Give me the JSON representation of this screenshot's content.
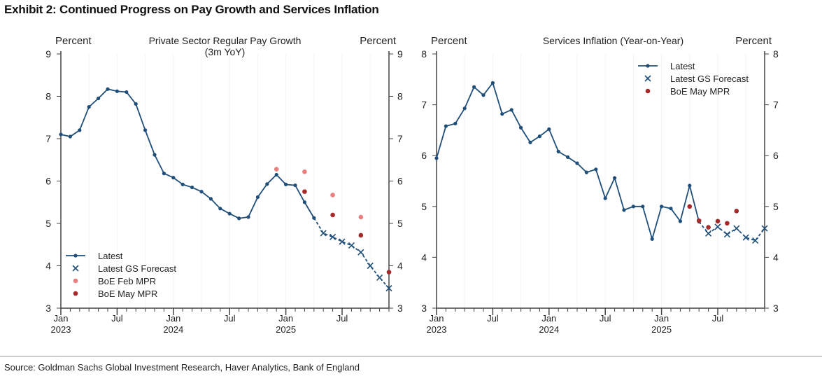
{
  "title": "Exhibit 2: Continued Progress on Pay Growth and Services Inflation",
  "source": "Source: Goldman Sachs Global Investment Research, Haver Analytics, Bank of England",
  "colors": {
    "latest": "#1f4e79",
    "feb_mpr": "#e88080",
    "may_mpr": "#a52a2a"
  },
  "chart_data": [
    {
      "type": "line",
      "title": "Private Sector Regular Pay Growth",
      "subtitle": "(3m YoY)",
      "ylabel_left": "Percent",
      "ylabel_right": "Percent",
      "ylim": [
        3,
        9
      ],
      "yticks": [
        "3",
        "4",
        "5",
        "6",
        "7",
        "8",
        "9"
      ],
      "xticks": [
        {
          "m": 0,
          "label": "Jan",
          "label2": "2023"
        },
        {
          "m": 6,
          "label": "Jul",
          "label2": ""
        },
        {
          "m": 12,
          "label": "Jan",
          "label2": "2024"
        },
        {
          "m": 18,
          "label": "Jul",
          "label2": ""
        },
        {
          "m": 24,
          "label": "Jan",
          "label2": "2025"
        },
        {
          "m": 30,
          "label": "Jul",
          "label2": ""
        }
      ],
      "x_months": 36,
      "legend": [
        "Latest",
        "Latest GS Forecast",
        "BoE Feb MPR",
        "BoE May MPR"
      ],
      "legend_position": "bottom-left",
      "series": {
        "latest": {
          "start": 0,
          "values": [
            7.1,
            7.05,
            7.2,
            7.75,
            7.95,
            8.17,
            8.12,
            8.1,
            7.82,
            7.2,
            6.62,
            6.18,
            6.08,
            5.92,
            5.85,
            5.75,
            5.58,
            5.35,
            5.23,
            5.12,
            5.15,
            5.62,
            5.93,
            6.15,
            5.92,
            5.9,
            5.5,
            5.13
          ]
        },
        "forecast": {
          "start": 28,
          "values": [
            4.77,
            4.68,
            4.57,
            4.48,
            4.32,
            4.0,
            3.72,
            3.47
          ]
        },
        "feb_mpr": [
          {
            "m": 23,
            "v": 6.28
          },
          {
            "m": 26,
            "v": 6.22
          },
          {
            "m": 29,
            "v": 5.67
          },
          {
            "m": 32,
            "v": 5.15
          }
        ],
        "may_mpr": [
          {
            "m": 26,
            "v": 5.75
          },
          {
            "m": 29,
            "v": 5.2
          },
          {
            "m": 32,
            "v": 4.72
          },
          {
            "m": 35,
            "v": 3.85
          }
        ]
      }
    },
    {
      "type": "line",
      "title": "Services Inflation (Year-on-Year)",
      "subtitle": "",
      "ylabel_left": "Percent",
      "ylabel_right": "Percent",
      "ylim": [
        3,
        8
      ],
      "yticks": [
        "3",
        "4",
        "5",
        "6",
        "7",
        "8"
      ],
      "xticks": [
        {
          "m": 0,
          "label": "Jan",
          "label2": "2023"
        },
        {
          "m": 6,
          "label": "Jul",
          "label2": ""
        },
        {
          "m": 12,
          "label": "Jan",
          "label2": "2024"
        },
        {
          "m": 18,
          "label": "Jul",
          "label2": ""
        },
        {
          "m": 24,
          "label": "Jan",
          "label2": "2025"
        },
        {
          "m": 30,
          "label": "Jul",
          "label2": ""
        }
      ],
      "x_months": 36,
      "legend": [
        "Latest",
        "Latest GS Forecast",
        "BoE May MPR"
      ],
      "legend_position": "top-right",
      "series": {
        "latest": {
          "start": 0,
          "values": [
            5.95,
            6.58,
            6.63,
            6.93,
            7.35,
            7.19,
            7.43,
            6.82,
            6.9,
            6.55,
            6.26,
            6.38,
            6.52,
            6.08,
            5.97,
            5.85,
            5.67,
            5.73,
            5.16,
            5.56,
            4.93,
            5.0,
            5.0,
            4.36,
            5.0,
            4.96,
            4.71,
            5.41,
            4.7
          ]
        },
        "forecast": {
          "start": 29,
          "values": [
            4.47,
            4.6,
            4.45,
            4.57,
            4.39,
            4.33,
            4.57
          ]
        },
        "may_mpr": [
          {
            "m": 27,
            "v": 5.0
          },
          {
            "m": 28,
            "v": 4.72
          },
          {
            "m": 29,
            "v": 4.59
          },
          {
            "m": 30,
            "v": 4.71
          },
          {
            "m": 31,
            "v": 4.67
          },
          {
            "m": 32,
            "v": 4.91
          }
        ]
      }
    }
  ]
}
